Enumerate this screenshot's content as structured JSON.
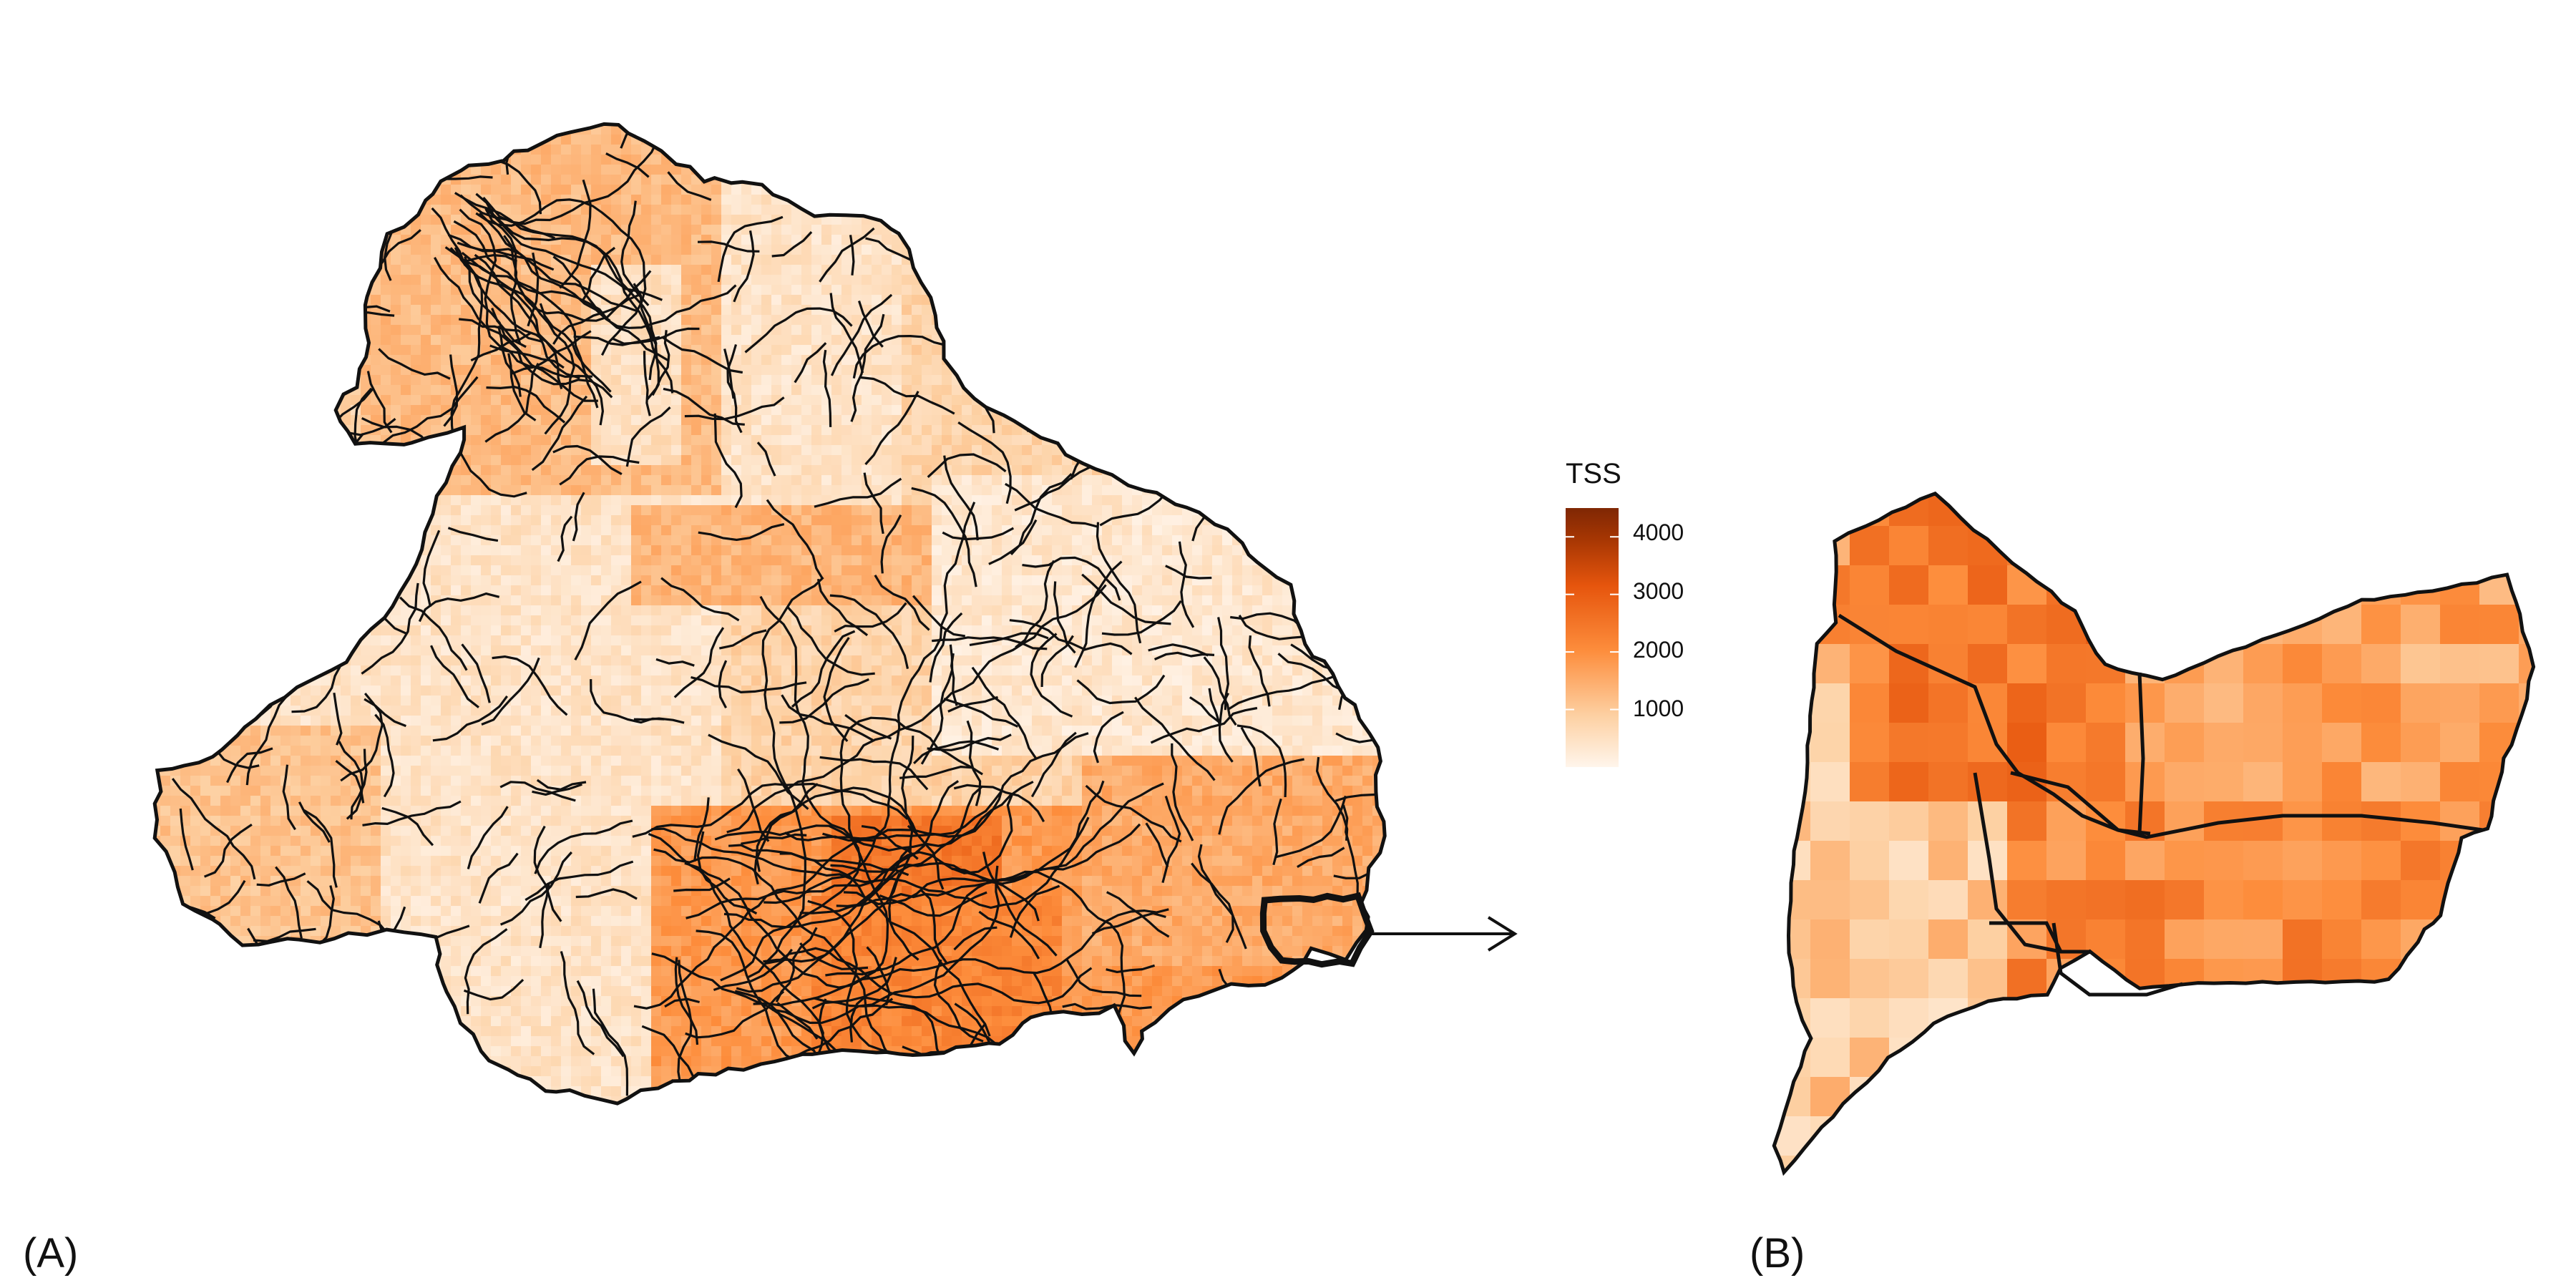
{
  "figure": {
    "panels": [
      {
        "id": "A",
        "label": "(A)",
        "description_kind": "watershed-subbasins-map"
      },
      {
        "id": "B",
        "label": "(B)",
        "description_kind": "zoomed-subbasins-map"
      }
    ]
  },
  "legend": {
    "title": "TSS",
    "ticks": [
      "4000",
      "3000",
      "2000",
      "1000"
    ],
    "tick_values": [
      4000,
      3000,
      2000,
      1000
    ],
    "range": [
      0,
      4500
    ],
    "colors": [
      "#fff5eb",
      "#fdd0a2",
      "#fd8d3c",
      "#e6550d",
      "#a63603",
      "#7f2704"
    ]
  },
  "colors": {
    "boundary": "#111111",
    "low": "#fde0c5",
    "mid": "#f7a56b",
    "high": "#e8631c",
    "very_high": "#c4400c"
  },
  "arrow": {
    "from": "A",
    "to": "B",
    "icon": "right-arrow-icon"
  }
}
